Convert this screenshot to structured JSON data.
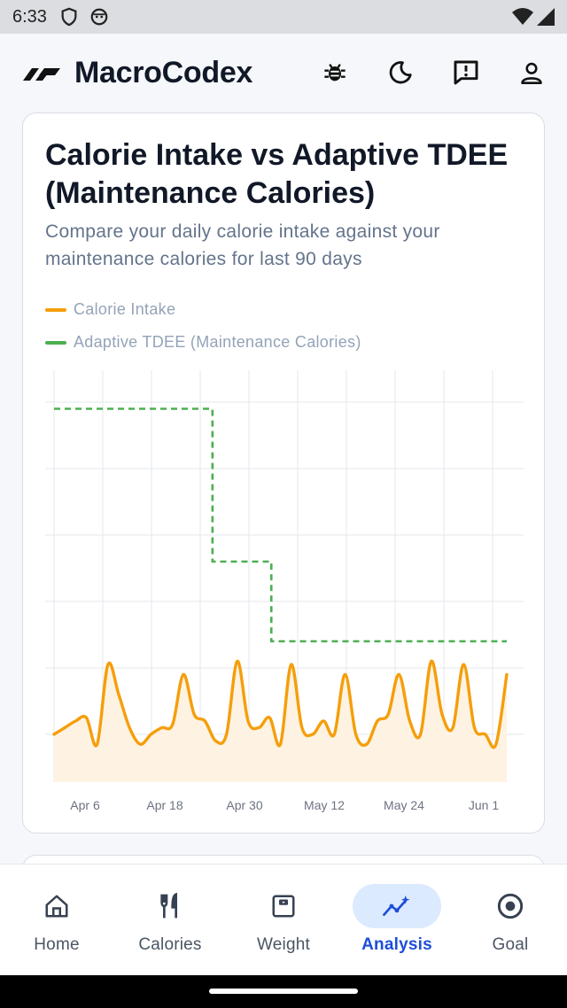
{
  "status_bar": {
    "time": "6:33"
  },
  "header": {
    "app_name": "MacroCodex",
    "icons": [
      "bug-icon",
      "moon-icon",
      "feedback-icon",
      "profile-icon"
    ]
  },
  "card": {
    "title": "Calorie Intake vs Adaptive TDEE (Maintenance Calories)",
    "subtitle": "Compare your daily calorie intake against your maintenance calories for last 90 days",
    "legend": [
      {
        "label": "Calorie Intake",
        "color": "#f59e0b"
      },
      {
        "label": "Adaptive TDEE (Maintenance Calories)",
        "color": "#4caf50"
      }
    ]
  },
  "chart_data": {
    "type": "line",
    "x_tick_labels": [
      "Apr 6",
      "Apr 18",
      "Apr 30",
      "May 12",
      "May 24",
      "Jun 1"
    ],
    "series": [
      {
        "name": "Calorie Intake",
        "color": "#f59e0b",
        "style": "solid",
        "area_fill": "#fef3e2",
        "values": [
          0.0,
          0.1,
          0.2,
          0.25,
          -0.15,
          1.05,
          0.6,
          0.1,
          -0.15,
          0.0,
          0.1,
          0.15,
          0.9,
          0.3,
          0.2,
          -0.1,
          0.0,
          1.1,
          0.2,
          0.1,
          0.25,
          -0.15,
          1.05,
          0.1,
          0.0,
          0.2,
          0.0,
          0.9,
          0.0,
          -0.15,
          0.2,
          0.3,
          0.9,
          0.2,
          0.0,
          1.1,
          0.3,
          0.1,
          1.05,
          0.1,
          0.0,
          -0.15,
          0.9
        ]
      },
      {
        "name": "Adaptive TDEE (Maintenance Calories)",
        "color": "#4caf50",
        "style": "dashed",
        "steps": [
          {
            "from": 0.0,
            "to": 0.35,
            "level": 4.9
          },
          {
            "from": 0.35,
            "to": 0.48,
            "level": 2.6
          },
          {
            "from": 0.48,
            "to": 1.0,
            "level": 1.4
          }
        ]
      }
    ],
    "grid": true
  },
  "nav": {
    "items": [
      {
        "label": "Home",
        "icon": "home-icon",
        "active": false
      },
      {
        "label": "Calories",
        "icon": "fork-knife-icon",
        "active": false
      },
      {
        "label": "Weight",
        "icon": "scale-icon",
        "active": false
      },
      {
        "label": "Analysis",
        "icon": "analysis-icon",
        "active": true
      },
      {
        "label": "Goal",
        "icon": "target-icon",
        "active": false
      }
    ]
  }
}
